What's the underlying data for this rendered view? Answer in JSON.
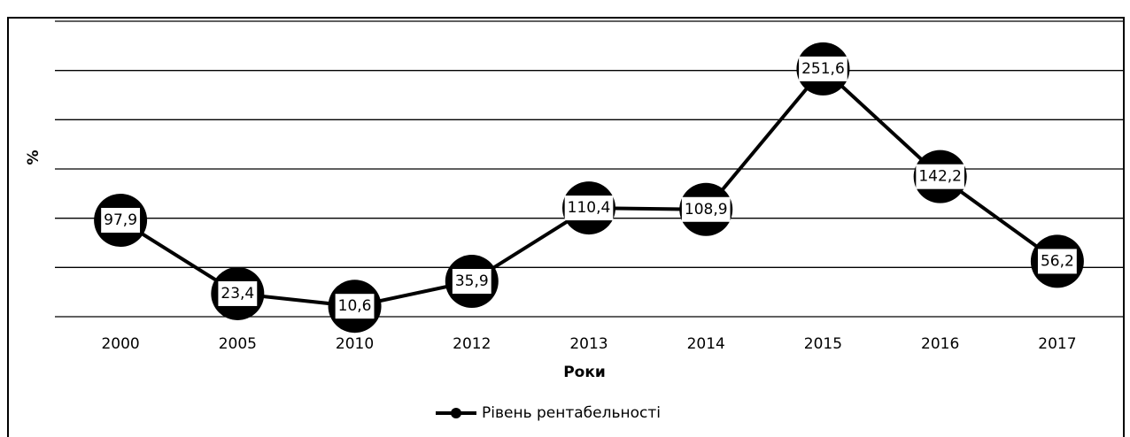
{
  "chart_data": {
    "type": "line",
    "y_label": "%",
    "x_label": "Роки",
    "categories": [
      "2000",
      "2005",
      "2010",
      "2012",
      "2013",
      "2014",
      "2015",
      "2016",
      "2017"
    ],
    "series": [
      {
        "name": "Рівень рентабельності",
        "color": "#000000",
        "values": [
          97.9,
          23.4,
          10.6,
          35.9,
          110.4,
          108.9,
          251.6,
          142.2,
          56.2
        ],
        "value_labels": [
          "97,9",
          "23,4",
          "10,6",
          "35,9",
          "110,4",
          "108,9",
          "251,6",
          "142,2",
          "56,2"
        ]
      }
    ],
    "ylim": [
      0,
      300
    ],
    "yticks": [
      0,
      50,
      100,
      150,
      200,
      250,
      300
    ],
    "grid": true,
    "legend": "bottom"
  }
}
